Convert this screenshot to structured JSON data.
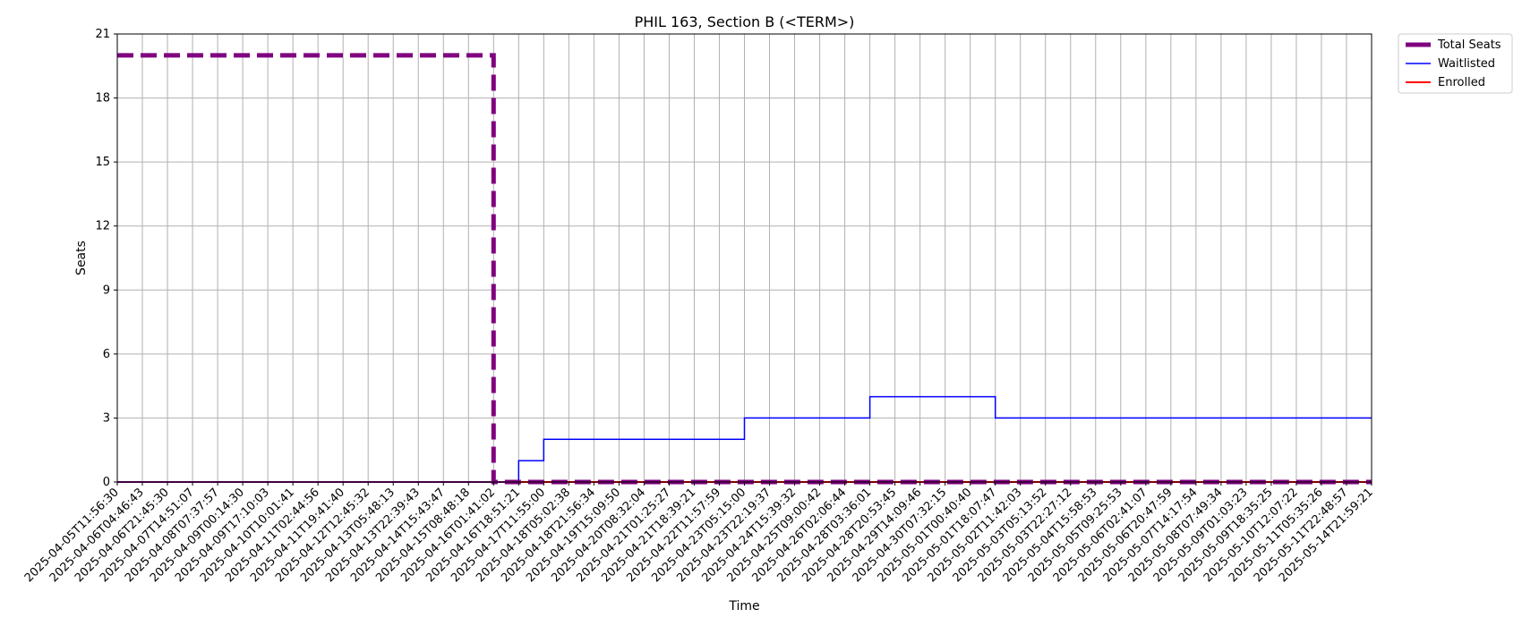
{
  "chart_data": {
    "type": "line",
    "title": "PHIL 163, Section B (<TERM>)",
    "xlabel": "Time",
    "ylabel": "Seats",
    "ylim": [
      0,
      21
    ],
    "yticks": [
      0,
      3,
      6,
      9,
      12,
      15,
      18,
      21
    ],
    "grid": true,
    "legend_position": "outside-top-right",
    "x": [
      "2025-04-05T11:56:30",
      "2025-04-06T04:46:43",
      "2025-04-06T21:45:30",
      "2025-04-07T14:51:07",
      "2025-04-08T07:37:57",
      "2025-04-09T00:14:30",
      "2025-04-09T17:10:03",
      "2025-04-10T10:01:41",
      "2025-04-11T02:44:56",
      "2025-04-11T19:41:40",
      "2025-04-12T12:45:32",
      "2025-04-13T05:48:13",
      "2025-04-13T22:39:43",
      "2025-04-14T15:43:47",
      "2025-04-15T08:48:18",
      "2025-04-16T01:41:02",
      "2025-04-16T18:51:21",
      "2025-04-17T11:55:00",
      "2025-04-18T05:02:38",
      "2025-04-18T21:56:34",
      "2025-04-19T15:09:50",
      "2025-04-20T08:32:04",
      "2025-04-21T01:25:27",
      "2025-04-21T18:39:21",
      "2025-04-22T11:57:59",
      "2025-04-23T05:15:00",
      "2025-04-23T22:19:37",
      "2025-04-24T15:39:32",
      "2025-04-25T09:00:42",
      "2025-04-26T02:06:44",
      "2025-04-28T03:36:01",
      "2025-04-28T20:53:45",
      "2025-04-29T14:09:46",
      "2025-04-30T07:32:15",
      "2025-05-01T00:40:40",
      "2025-05-01T18:07:47",
      "2025-05-02T11:42:03",
      "2025-05-03T05:13:52",
      "2025-05-03T22:27:12",
      "2025-05-04T15:58:53",
      "2025-05-05T09:25:53",
      "2025-05-06T02:41:07",
      "2025-05-06T20:47:59",
      "2025-05-07T14:17:54",
      "2025-05-08T07:49:34",
      "2025-05-09T01:03:23",
      "2025-05-09T18:35:25",
      "2025-05-10T12:07:22",
      "2025-05-11T05:35:26",
      "2025-05-11T22:48:57",
      "2025-05-14T21:59:21"
    ],
    "series": [
      {
        "name": "Total Seats",
        "color": "#800080",
        "style": "dashed",
        "step": true,
        "values": [
          20,
          20,
          20,
          20,
          20,
          20,
          20,
          20,
          20,
          20,
          20,
          20,
          20,
          20,
          20,
          0,
          0,
          0,
          0,
          0,
          0,
          0,
          0,
          0,
          0,
          0,
          0,
          0,
          0,
          0,
          0,
          0,
          0,
          0,
          0,
          0,
          0,
          0,
          0,
          0,
          0,
          0,
          0,
          0,
          0,
          0,
          0,
          0,
          0,
          0,
          0
        ]
      },
      {
        "name": "Waitlisted",
        "color": "#0000ff",
        "style": "solid",
        "step": true,
        "values": [
          0,
          0,
          0,
          0,
          0,
          0,
          0,
          0,
          0,
          0,
          0,
          0,
          0,
          0,
          0,
          0,
          1,
          2,
          2,
          2,
          2,
          2,
          2,
          2,
          2,
          3,
          3,
          3,
          3,
          3,
          4,
          4,
          4,
          4,
          4,
          3,
          3,
          3,
          3,
          3,
          3,
          3,
          3,
          3,
          3,
          3,
          3,
          3,
          3,
          3,
          3
        ]
      },
      {
        "name": "Enrolled",
        "color": "#ff0000",
        "style": "solid",
        "step": true,
        "values": [
          0,
          0,
          0,
          0,
          0,
          0,
          0,
          0,
          0,
          0,
          0,
          0,
          0,
          0,
          0,
          0,
          0,
          0,
          0,
          0,
          0,
          0,
          0,
          0,
          0,
          0,
          0,
          0,
          0,
          0,
          0,
          0,
          0,
          0,
          0,
          0,
          0,
          0,
          0,
          0,
          0,
          0,
          0,
          0,
          0,
          0,
          0,
          0,
          0,
          0,
          0
        ]
      }
    ]
  }
}
